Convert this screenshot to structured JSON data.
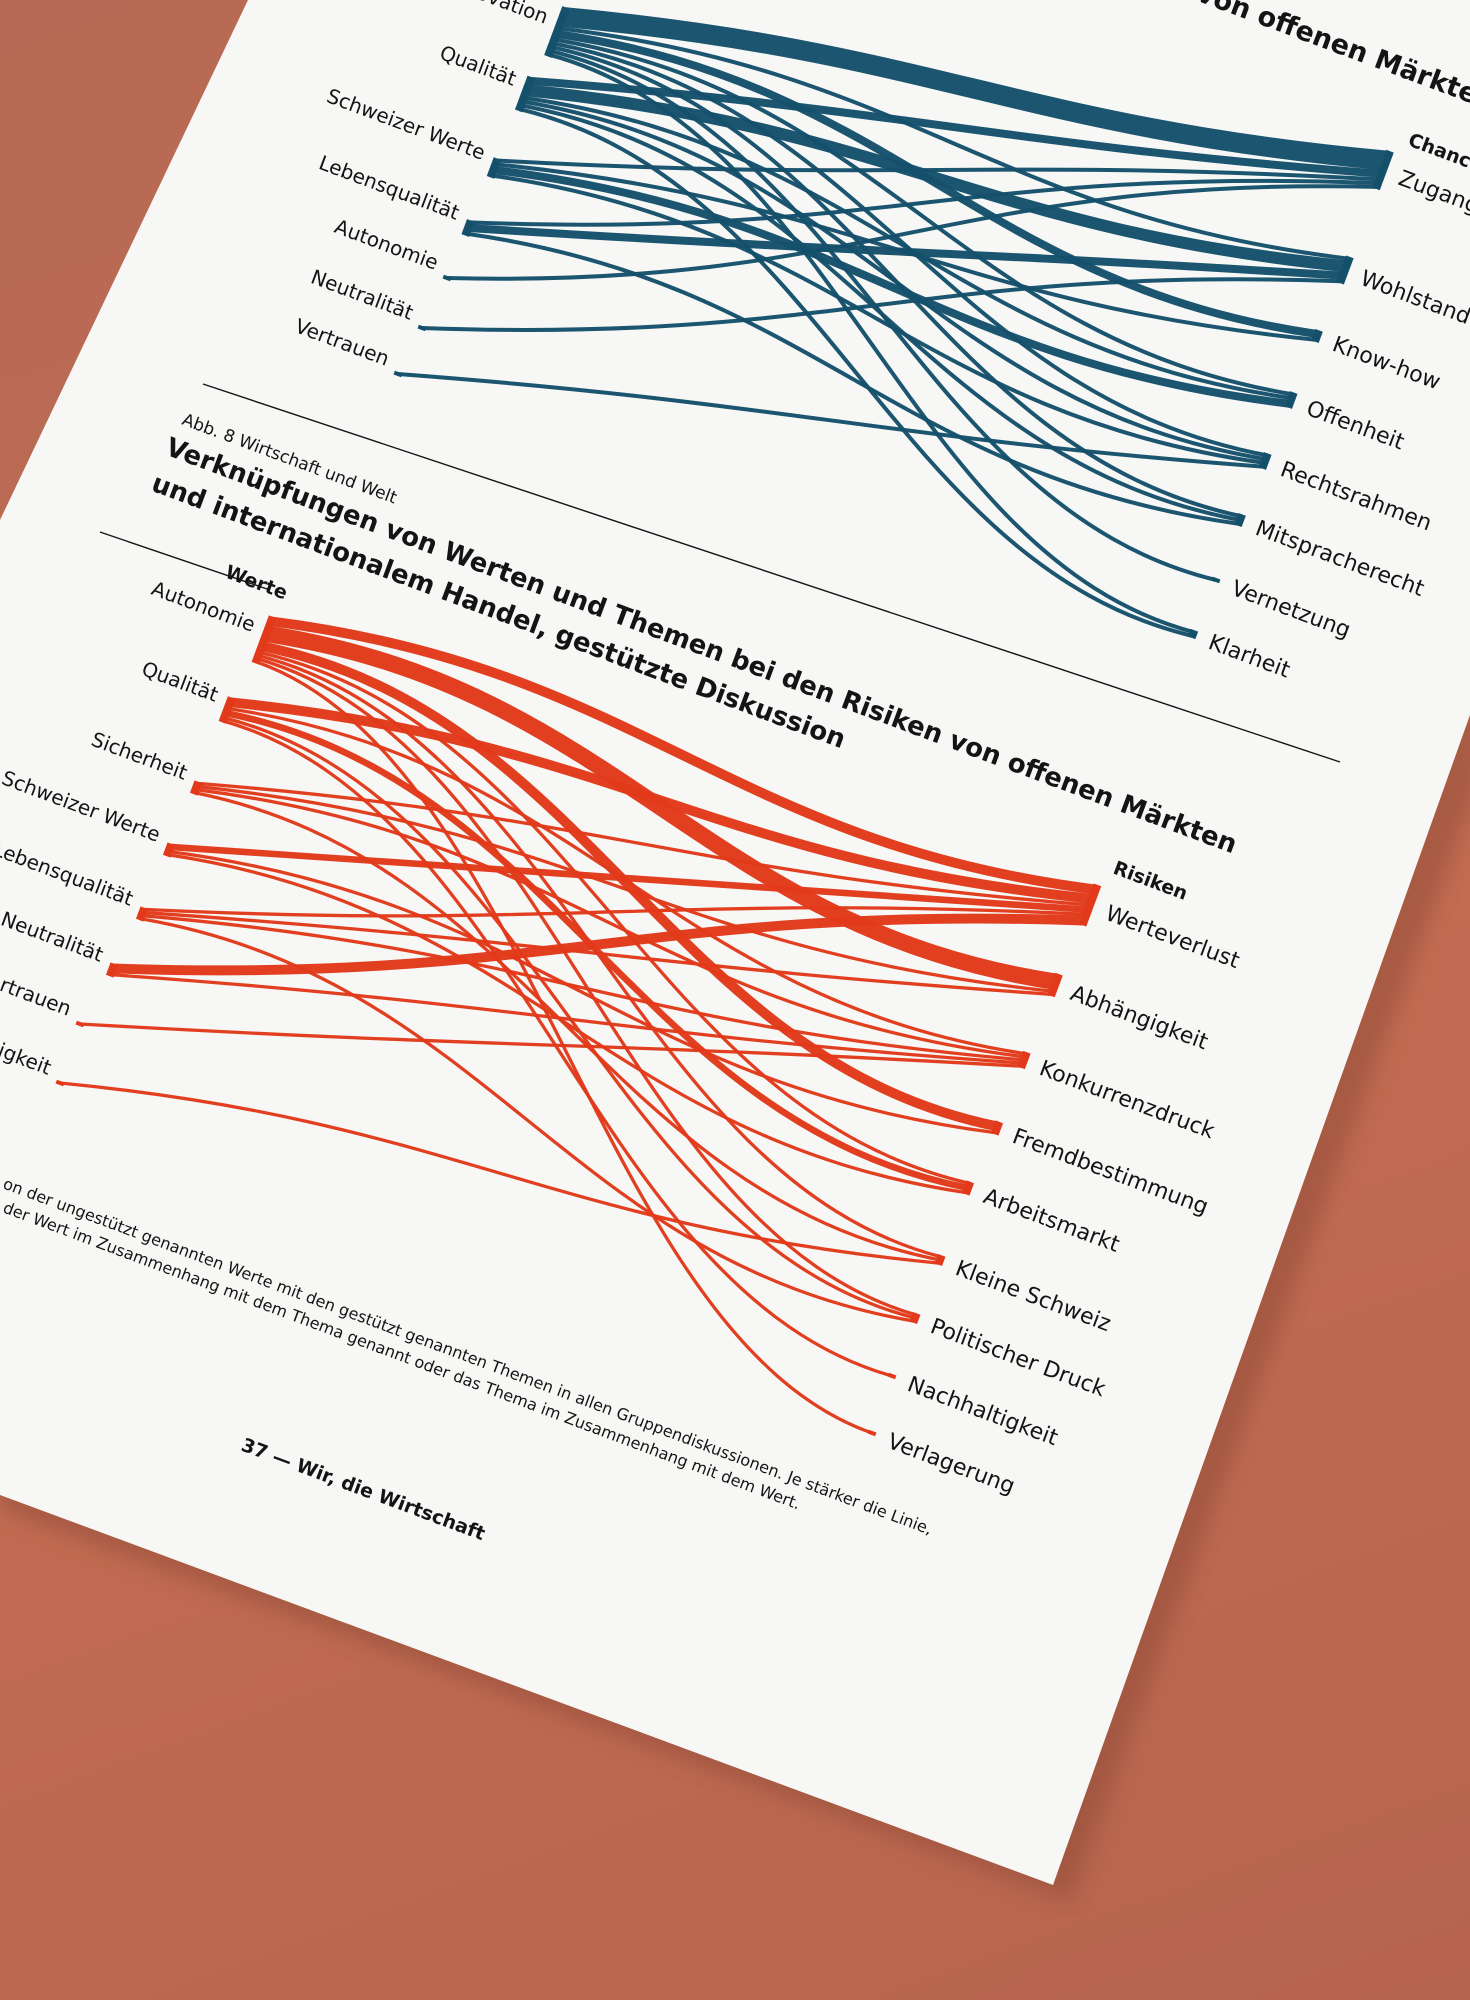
{
  "page": {
    "title_top_fragment": "von offenen Märkten",
    "figure_label": "Abb. 8  Wirtschaft und Welt",
    "figure_title_line1": "Verknüpfungen von Werten und Themen bei den Risiken von offenen Märkten",
    "figure_title_line2": "und internationalem Handel, gestützte Diskussion",
    "caption_line1": "on der ungestützt genannten Werte mit den gestützt genannten Themen in allen Gruppendiskussionen. Je stärker die Linie,",
    "caption_line2": "der Wert im Zusammenhang mit dem Thema genannt oder das Thema im Zusammenhang mit dem Wert.",
    "footer": "37 — Wir, die Wirtschaft",
    "colors": {
      "paper": "#f7f7f5",
      "background": "#c06a51",
      "chances": "#15506b",
      "risks": "#e1391a",
      "text": "#141414"
    }
  },
  "chart_data": [
    {
      "type": "sankey",
      "title": "von offenen Märkten",
      "left_header": "",
      "right_header": "Chancen",
      "left": [
        "Innovation",
        "Qualität",
        "Schweizer Werte",
        "Lebensqualität",
        "Autonomie",
        "Neutralität",
        "Vertrauen"
      ],
      "right": [
        "Zugang",
        "Wohlstand",
        "Know-how",
        "Offenheit",
        "Rechtsrahmen",
        "Mitspracherecht",
        "Vernetzung",
        "Klarheit"
      ],
      "links": [
        [
          "Innovation",
          "Zugang",
          5
        ],
        [
          "Innovation",
          "Wohlstand",
          1
        ],
        [
          "Innovation",
          "Know-how",
          2
        ],
        [
          "Innovation",
          "Offenheit",
          1
        ],
        [
          "Innovation",
          "Rechtsrahmen",
          1
        ],
        [
          "Innovation",
          "Mitspracherecht",
          1
        ],
        [
          "Innovation",
          "Vernetzung",
          1
        ],
        [
          "Innovation",
          "Klarheit",
          1
        ],
        [
          "Qualität",
          "Zugang",
          2
        ],
        [
          "Qualität",
          "Wohlstand",
          3
        ],
        [
          "Qualität",
          "Offenheit",
          1
        ],
        [
          "Qualität",
          "Rechtsrahmen",
          1
        ],
        [
          "Qualität",
          "Mitspracherecht",
          1
        ],
        [
          "Qualität",
          "Klarheit",
          1
        ],
        [
          "Schweizer Werte",
          "Zugang",
          1
        ],
        [
          "Schweizer Werte",
          "Know-how",
          1
        ],
        [
          "Schweizer Werte",
          "Offenheit",
          2
        ],
        [
          "Schweizer Werte",
          "Rechtsrahmen",
          1
        ],
        [
          "Lebensqualität",
          "Zugang",
          1
        ],
        [
          "Lebensqualität",
          "Wohlstand",
          2
        ],
        [
          "Lebensqualität",
          "Mitspracherecht",
          1
        ],
        [
          "Autonomie",
          "Zugang",
          1
        ],
        [
          "Neutralität",
          "Wohlstand",
          1
        ],
        [
          "Vertrauen",
          "Rechtsrahmen",
          1
        ]
      ]
    },
    {
      "type": "sankey",
      "title": "Verknüpfungen von Werten und Themen bei den Risiken von offenen Märkten und internationalem Handel, gestützte Diskussion",
      "left_header": "Werte",
      "right_header": "Risiken",
      "left": [
        "Autonomie",
        "Qualität",
        "Sicherheit",
        "Schweizer Werte",
        "Lebensqualität",
        "Neutralität",
        "Vertrauen",
        "Nachhaltigkeit"
      ],
      "right": [
        "Werteverlust",
        "Abhängigkeit",
        "Konkurrenzdruck",
        "Fremdbestimmung",
        "Arbeitsmarkt",
        "Kleine Schweiz",
        "Politischer Druck",
        "Nachhaltigkeit",
        "Verlagerung"
      ],
      "links": [
        [
          "Autonomie",
          "Werteverlust",
          3
        ],
        [
          "Autonomie",
          "Abhängigkeit",
          5
        ],
        [
          "Autonomie",
          "Fremdbestimmung",
          3
        ],
        [
          "Autonomie",
          "Arbeitsmarkt",
          1
        ],
        [
          "Autonomie",
          "Kleine Schweiz",
          1
        ],
        [
          "Autonomie",
          "Politischer Druck",
          1
        ],
        [
          "Autonomie",
          "Verlagerung",
          1
        ],
        [
          "Qualität",
          "Werteverlust",
          3
        ],
        [
          "Qualität",
          "Konkurrenzdruck",
          1
        ],
        [
          "Qualität",
          "Arbeitsmarkt",
          2
        ],
        [
          "Qualität",
          "Nachhaltigkeit",
          1
        ],
        [
          "Qualität",
          "Politischer Druck",
          1
        ],
        [
          "Sicherheit",
          "Werteverlust",
          1
        ],
        [
          "Sicherheit",
          "Abhängigkeit",
          1
        ],
        [
          "Sicherheit",
          "Konkurrenzdruck",
          1
        ],
        [
          "Sicherheit",
          "Kleine Schweiz",
          1
        ],
        [
          "Schweizer Werte",
          "Werteverlust",
          2
        ],
        [
          "Schweizer Werte",
          "Fremdbestimmung",
          1
        ],
        [
          "Schweizer Werte",
          "Arbeitsmarkt",
          1
        ],
        [
          "Lebensqualität",
          "Werteverlust",
          1
        ],
        [
          "Lebensqualität",
          "Abhängigkeit",
          1
        ],
        [
          "Lebensqualität",
          "Konkurrenzdruck",
          1
        ],
        [
          "Lebensqualität",
          "Politischer Druck",
          1
        ],
        [
          "Neutralität",
          "Werteverlust",
          3
        ],
        [
          "Neutralität",
          "Konkurrenzdruck",
          1
        ],
        [
          "Vertrauen",
          "Konkurrenzdruck",
          1
        ],
        [
          "Nachhaltigkeit",
          "Kleine Schweiz",
          1
        ]
      ]
    }
  ]
}
